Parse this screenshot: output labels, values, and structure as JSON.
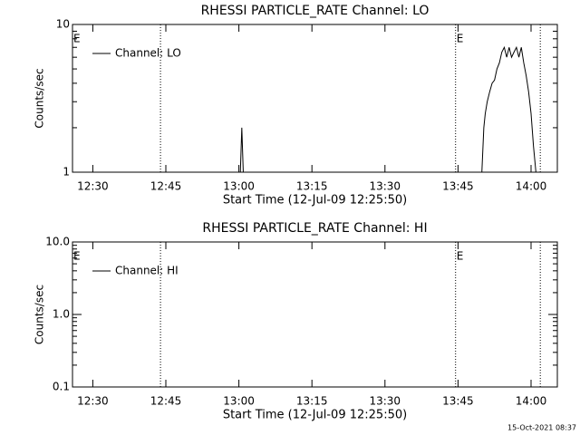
{
  "chart_data": [
    {
      "type": "line",
      "title": "RHESSI PARTICLE_RATE Channel: LO",
      "xlabel": "Start Time (12-Jul-09 12:25:50)",
      "ylabel": "Counts/sec",
      "log_y": true,
      "ylim": [
        1,
        10
      ],
      "yticks": [
        1,
        10
      ],
      "xlim": [
        25.83,
        125.4
      ],
      "xticks": [
        {
          "value": 30,
          "label": "12:30"
        },
        {
          "value": 45,
          "label": "12:45"
        },
        {
          "value": 60,
          "label": "13:00"
        },
        {
          "value": 75,
          "label": "13:15"
        },
        {
          "value": 90,
          "label": "13:30"
        },
        {
          "value": 105,
          "label": "13:45"
        },
        {
          "value": 120,
          "label": "14:00"
        }
      ],
      "vlines": [
        43.9,
        104.5,
        121.9
      ],
      "annotations": [
        {
          "x": 25.83,
          "label": "E"
        },
        {
          "x": 104.5,
          "label": "E"
        }
      ],
      "legend": "upper left",
      "series": [
        {
          "name": "Channel: LO",
          "color": "#000000",
          "x": [
            60.3,
            60.6,
            60.9,
            61.2,
            109.9,
            110.3,
            110.6,
            111,
            111.5,
            112,
            112.5,
            113,
            113.5,
            114,
            114.5,
            115,
            115.5,
            116,
            116.5,
            117,
            117.5,
            118,
            118.5,
            119,
            119.5,
            120,
            120.5,
            121
          ],
          "values": [
            1,
            2.0,
            1,
            null,
            1,
            2.0,
            2.5,
            3,
            3.5,
            4,
            4.2,
            5,
            5.5,
            6.5,
            7,
            6,
            7,
            6,
            6.5,
            7,
            6,
            7,
            5.5,
            4.5,
            3.5,
            2.5,
            1.5,
            1
          ]
        }
      ]
    },
    {
      "type": "line",
      "title": "RHESSI PARTICLE_RATE Channel: HI",
      "xlabel": "Start Time (12-Jul-09 12:25:50)",
      "ylabel": "Counts/sec",
      "log_y": true,
      "ylim": [
        0.1,
        10
      ],
      "yticks": [
        0.1,
        {
          "value": 1,
          "label": "1.0"
        },
        {
          "value": 10,
          "label": "10.0"
        }
      ],
      "xlim": [
        25.83,
        125.4
      ],
      "xticks": [
        {
          "value": 30,
          "label": "12:30"
        },
        {
          "value": 45,
          "label": "12:45"
        },
        {
          "value": 60,
          "label": "13:00"
        },
        {
          "value": 75,
          "label": "13:15"
        },
        {
          "value": 90,
          "label": "13:30"
        },
        {
          "value": 105,
          "label": "13:45"
        },
        {
          "value": 120,
          "label": "14:00"
        }
      ],
      "vlines": [
        43.9,
        104.5,
        121.9
      ],
      "annotations": [
        {
          "x": 25.83,
          "label": "E"
        },
        {
          "x": 104.5,
          "label": "E"
        }
      ],
      "legend": "upper left",
      "series": [
        {
          "name": "Channel: HI",
          "color": "#000000",
          "x": [],
          "values": []
        }
      ]
    }
  ],
  "footer": "15-Oct-2021 08:37"
}
